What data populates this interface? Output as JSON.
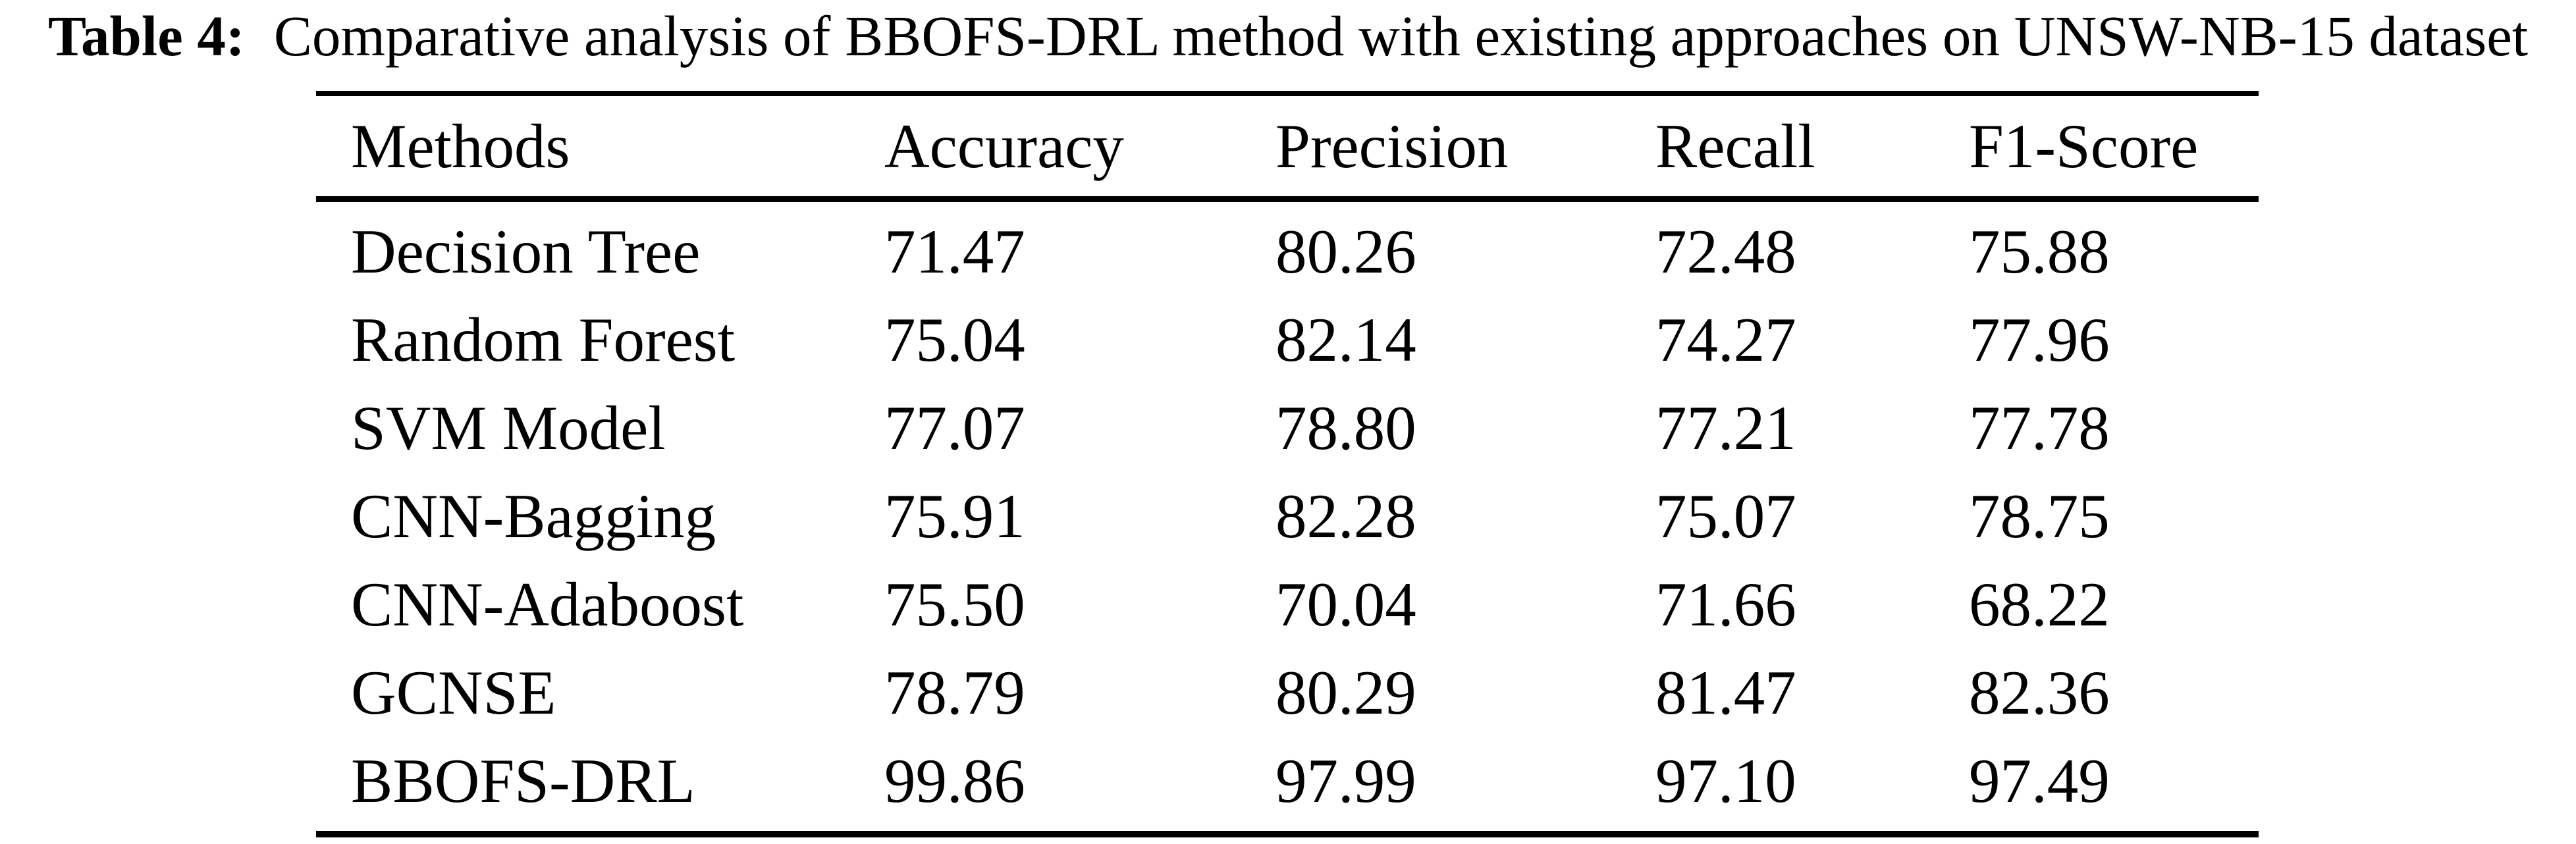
{
  "caption": {
    "label": "Table 4:",
    "text": "Comparative analysis of BBOFS-DRL method with existing approaches on UNSW-NB-15 dataset"
  },
  "table": {
    "columns": [
      "Methods",
      "Accuracy",
      "Precision",
      "Recall",
      "F1-Score"
    ],
    "rows": [
      {
        "method": "Decision Tree",
        "accuracy": "71.47",
        "precision": "80.26",
        "recall": "72.48",
        "f1": "75.88"
      },
      {
        "method": "Random Forest",
        "accuracy": "75.04",
        "precision": "82.14",
        "recall": "74.27",
        "f1": "77.96"
      },
      {
        "method": "SVM Model",
        "accuracy": "77.07",
        "precision": "78.80",
        "recall": "77.21",
        "f1": "77.78"
      },
      {
        "method": "CNN-Bagging",
        "accuracy": "75.91",
        "precision": "82.28",
        "recall": "75.07",
        "f1": "78.75"
      },
      {
        "method": "CNN-Adaboost",
        "accuracy": "75.50",
        "precision": "70.04",
        "recall": "71.66",
        "f1": "68.22"
      },
      {
        "method": "GCNSE",
        "accuracy": "78.79",
        "precision": "80.29",
        "recall": "81.47",
        "f1": "82.36"
      },
      {
        "method": "BBOFS-DRL",
        "accuracy": "99.86",
        "precision": "97.99",
        "recall": "97.10",
        "f1": "97.49"
      }
    ]
  },
  "colors": {
    "background": "#ffffff",
    "text": "#000000",
    "rule": "#000000"
  }
}
